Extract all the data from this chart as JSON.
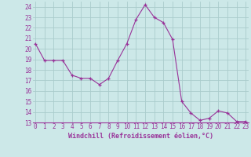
{
  "x": [
    0,
    1,
    2,
    3,
    4,
    5,
    6,
    7,
    8,
    9,
    10,
    11,
    12,
    13,
    14,
    15,
    16,
    17,
    18,
    19,
    20,
    21,
    22,
    23
  ],
  "y": [
    20.5,
    18.9,
    18.9,
    18.9,
    17.5,
    17.2,
    17.2,
    16.6,
    17.2,
    18.9,
    20.5,
    22.8,
    24.2,
    23.0,
    22.5,
    20.9,
    15.0,
    13.9,
    13.2,
    13.4,
    14.1,
    13.9,
    13.1,
    13.1
  ],
  "line_color": "#993399",
  "marker": "+",
  "bg_color": "#cce8e8",
  "grid_color": "#aacccc",
  "xlabel": "Windchill (Refroidissement éolien,°C)",
  "xlabel_color": "#993399",
  "tick_color": "#993399",
  "spine_color": "#993399",
  "ylim": [
    13,
    24.5
  ],
  "yticks": [
    13,
    14,
    15,
    16,
    17,
    18,
    19,
    20,
    21,
    22,
    23,
    24
  ],
  "xticks": [
    0,
    1,
    2,
    3,
    4,
    5,
    6,
    7,
    8,
    9,
    10,
    11,
    12,
    13,
    14,
    15,
    16,
    17,
    18,
    19,
    20,
    21,
    22,
    23
  ],
  "figsize": [
    3.2,
    2.0
  ],
  "dpi": 100
}
